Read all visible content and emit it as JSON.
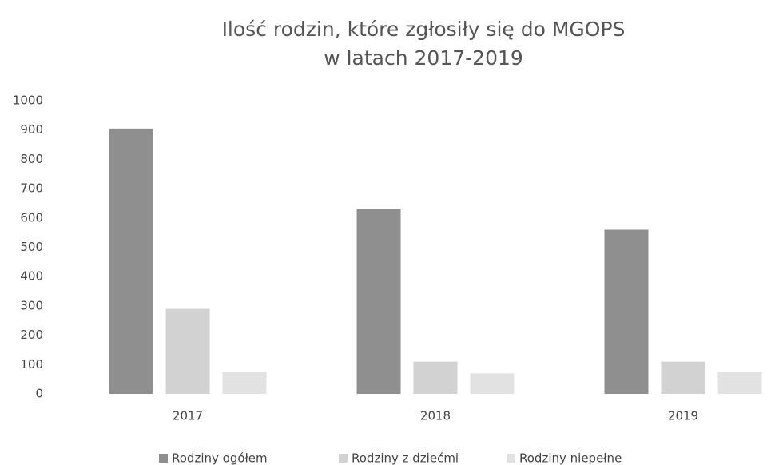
{
  "chart_data": {
    "type": "bar",
    "title": [
      "Ilość rodzin, które zgłosiły się do MGOPS",
      "w latach 2017-2019"
    ],
    "categories": [
      "2017",
      "2018",
      "2019"
    ],
    "series": [
      {
        "name": "Rodziny ogółem",
        "color": "#8f8f8f",
        "values": [
          905,
          630,
          560
        ]
      },
      {
        "name": "Rodziny z dziećmi",
        "color": "#d2d2d2",
        "values": [
          290,
          110,
          110
        ]
      },
      {
        "name": "Rodziny niepełne",
        "color": "#e2e2e2",
        "values": [
          75,
          70,
          75
        ]
      }
    ],
    "ylim": [
      0,
      1000
    ],
    "yticks": [
      0,
      100,
      200,
      300,
      400,
      500,
      600,
      700,
      800,
      900,
      1000
    ],
    "grid": false,
    "legend": "bottom"
  }
}
